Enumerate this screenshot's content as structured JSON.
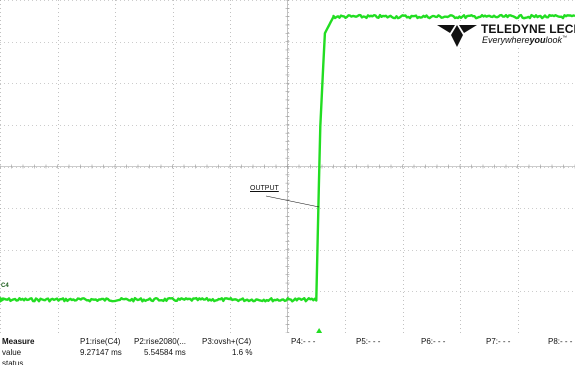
{
  "brand": {
    "name": "TELEDYNE LECROY",
    "tagline_prefix": "Everywhere",
    "tagline_bold": "you",
    "tagline_suffix": "look",
    "trademark": "™"
  },
  "screen": {
    "background_color": "#ffffff",
    "grid_color": "#9a9a9a",
    "trace_color": "#22dd22",
    "reference_label": "OUTPUT",
    "channel_marker": "C4"
  },
  "chart_data": {
    "type": "line",
    "series": [
      {
        "name": "C4",
        "color": "#22dd22",
        "x": [
          0,
          0.55,
          0.557,
          0.565,
          0.58,
          1
        ],
        "y": [
          0.1,
          0.1,
          0.62,
          0.9,
          0.95,
          0.95
        ]
      }
    ],
    "xlim": [
      0,
      1
    ],
    "ylim": [
      0,
      1
    ],
    "grid": true
  },
  "measure_table": {
    "headers": [
      "Measure",
      "P1:rise(C4)",
      "P2:rise2080(...",
      "P3:ovsh+(C4)",
      "P4:- - -",
      "P5:- - -",
      "P6:- - -",
      "P7:- - -",
      "P8:- - -"
    ],
    "value_row": [
      "value",
      "9.27147 ms",
      "5.54584 ms",
      "1.6 %",
      "",
      "",
      "",
      "",
      ""
    ],
    "status_row": [
      "status",
      "",
      "",
      "",
      "",
      "",
      "",
      "",
      ""
    ]
  }
}
